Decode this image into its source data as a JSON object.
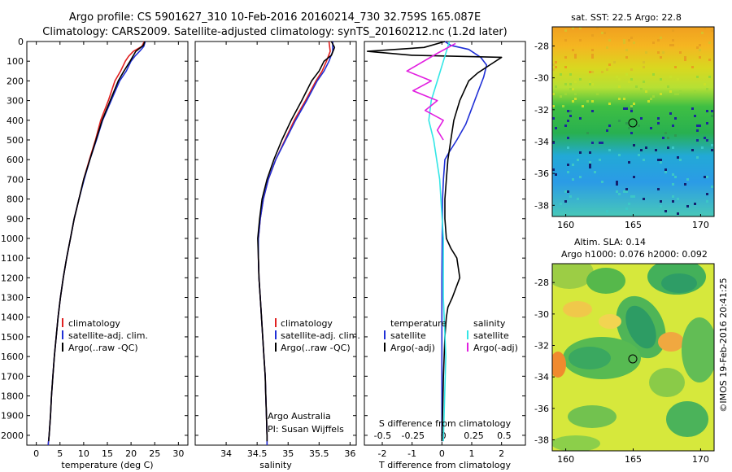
{
  "header": {
    "title_line1": "Argo profile: CS 5901627_310 10-Feb-2016 20160214_730 32.759S 165.087E",
    "title_line2": "Climatology: CARS2009. Satellite-adjusted climatology: synTS_20160212.nc (1.2d later)"
  },
  "colors": {
    "climatology": "#e02020",
    "satellite": "#1f2fd6",
    "argo": "#000000",
    "satellite_salinity": "#33e6e6",
    "argo_salinity": "#e21fe0"
  },
  "chart_data": [
    {
      "id": "temperature",
      "type": "line",
      "xlabel": "temperature (deg C)",
      "ylabel": "",
      "xlim": [
        -2,
        32
      ],
      "ylim": [
        2050,
        0
      ],
      "x_ticks": [
        0,
        5,
        10,
        15,
        20,
        25,
        30
      ],
      "y_ticks": [
        0,
        100,
        200,
        300,
        400,
        500,
        600,
        700,
        800,
        900,
        1000,
        1100,
        1200,
        1300,
        1400,
        1500,
        1600,
        1700,
        1800,
        1900,
        2000
      ],
      "legend": [
        "climatology",
        "satellite-adj. clim.",
        "Argo(..raw -QC)"
      ],
      "series": [
        {
          "name": "climatology",
          "color": "#e02020",
          "points": [
            [
              22.8,
              0
            ],
            [
              22.3,
              25
            ],
            [
              20.5,
              50
            ],
            [
              19.5,
              75
            ],
            [
              18.8,
              100
            ],
            [
              17.8,
              150
            ],
            [
              16.6,
              200
            ],
            [
              15.2,
              300
            ],
            [
              13.6,
              400
            ],
            [
              12.5,
              500
            ],
            [
              11.2,
              600
            ],
            [
              10.0,
              700
            ],
            [
              9.0,
              800
            ],
            [
              8.0,
              900
            ],
            [
              7.2,
              1000
            ],
            [
              6.4,
              1100
            ],
            [
              5.7,
              1200
            ],
            [
              5.1,
              1300
            ],
            [
              4.6,
              1400
            ],
            [
              4.2,
              1500
            ],
            [
              3.8,
              1600
            ],
            [
              3.5,
              1700
            ],
            [
              3.2,
              1800
            ],
            [
              3.0,
              1900
            ],
            [
              2.7,
              2000
            ],
            [
              2.5,
              2050
            ]
          ]
        },
        {
          "name": "satellite-adj. clim.",
          "color": "#1f2fd6",
          "points": [
            [
              23.0,
              0
            ],
            [
              22.7,
              25
            ],
            [
              21.8,
              50
            ],
            [
              20.8,
              75
            ],
            [
              20.0,
              100
            ],
            [
              19.0,
              150
            ],
            [
              17.6,
              200
            ],
            [
              15.8,
              300
            ],
            [
              14.0,
              400
            ],
            [
              12.7,
              500
            ],
            [
              11.3,
              600
            ],
            [
              10.1,
              700
            ],
            [
              9.0,
              800
            ],
            [
              8.0,
              900
            ],
            [
              7.2,
              1000
            ],
            [
              6.4,
              1100
            ],
            [
              5.7,
              1200
            ],
            [
              5.1,
              1300
            ],
            [
              4.6,
              1400
            ],
            [
              4.2,
              1500
            ],
            [
              3.8,
              1600
            ],
            [
              3.5,
              1700
            ],
            [
              3.2,
              1800
            ],
            [
              3.0,
              1900
            ],
            [
              2.7,
              2000
            ],
            [
              2.5,
              2050
            ]
          ]
        },
        {
          "name": "Argo(..raw -QC)",
          "color": "#000000",
          "points": [
            [
              22.9,
              0
            ],
            [
              22.6,
              20
            ],
            [
              21.0,
              50
            ],
            [
              19.8,
              100
            ],
            [
              18.5,
              150
            ],
            [
              17.3,
              200
            ],
            [
              15.6,
              300
            ],
            [
              13.9,
              400
            ],
            [
              12.6,
              500
            ],
            [
              11.3,
              600
            ],
            [
              10.0,
              700
            ],
            [
              9.0,
              800
            ],
            [
              8.0,
              900
            ],
            [
              7.2,
              1000
            ],
            [
              6.4,
              1100
            ],
            [
              5.7,
              1200
            ],
            [
              5.1,
              1300
            ],
            [
              4.6,
              1400
            ],
            [
              4.2,
              1500
            ],
            [
              3.8,
              1600
            ],
            [
              3.5,
              1700
            ],
            [
              3.2,
              1800
            ],
            [
              3.0,
              1900
            ],
            [
              2.7,
              2000
            ],
            [
              2.6,
              2030
            ]
          ]
        }
      ]
    },
    {
      "id": "salinity",
      "type": "line",
      "xlabel": "salinity",
      "xlim": [
        33.5,
        36.1
      ],
      "ylim": [
        2050,
        0
      ],
      "x_ticks": [
        34,
        34.5,
        35,
        35.5,
        36
      ],
      "legend": [
        "climatology",
        "satellite-adj. clim.",
        "Argo(..raw -QC)"
      ],
      "annotation": [
        "Argo Australia",
        "PI: Susan Wijffels"
      ],
      "series": [
        {
          "name": "climatology",
          "color": "#e02020",
          "points": [
            [
              35.66,
              0
            ],
            [
              35.68,
              50
            ],
            [
              35.62,
              100
            ],
            [
              35.55,
              150
            ],
            [
              35.45,
              200
            ],
            [
              35.28,
              300
            ],
            [
              35.1,
              400
            ],
            [
              34.95,
              500
            ],
            [
              34.8,
              600
            ],
            [
              34.68,
              700
            ],
            [
              34.6,
              800
            ],
            [
              34.55,
              900
            ],
            [
              34.52,
              1000
            ],
            [
              34.52,
              1100
            ],
            [
              34.53,
              1200
            ],
            [
              34.55,
              1300
            ],
            [
              34.57,
              1400
            ],
            [
              34.59,
              1500
            ],
            [
              34.61,
              1600
            ],
            [
              34.63,
              1700
            ],
            [
              34.64,
              1800
            ],
            [
              34.65,
              1900
            ],
            [
              34.66,
              2000
            ],
            [
              34.66,
              2050
            ]
          ]
        },
        {
          "name": "satellite-adj. clim.",
          "color": "#1f2fd6",
          "points": [
            [
              35.72,
              0
            ],
            [
              35.72,
              50
            ],
            [
              35.66,
              100
            ],
            [
              35.58,
              150
            ],
            [
              35.47,
              200
            ],
            [
              35.3,
              300
            ],
            [
              35.12,
              400
            ],
            [
              34.96,
              500
            ],
            [
              34.8,
              600
            ],
            [
              34.68,
              700
            ],
            [
              34.6,
              800
            ],
            [
              34.55,
              900
            ],
            [
              34.52,
              1000
            ],
            [
              34.52,
              1100
            ],
            [
              34.53,
              1200
            ],
            [
              34.55,
              1300
            ],
            [
              34.57,
              1400
            ],
            [
              34.59,
              1500
            ],
            [
              34.61,
              1600
            ],
            [
              34.63,
              1700
            ],
            [
              34.64,
              1800
            ],
            [
              34.65,
              1900
            ],
            [
              34.66,
              2000
            ],
            [
              34.66,
              2050
            ]
          ]
        },
        {
          "name": "Argo(..raw -QC)",
          "color": "#000000",
          "points": [
            [
              35.7,
              0
            ],
            [
              35.75,
              30
            ],
            [
              35.7,
              70
            ],
            [
              35.58,
              100
            ],
            [
              35.5,
              150
            ],
            [
              35.38,
              200
            ],
            [
              35.22,
              300
            ],
            [
              35.05,
              400
            ],
            [
              34.9,
              500
            ],
            [
              34.77,
              600
            ],
            [
              34.66,
              700
            ],
            [
              34.58,
              800
            ],
            [
              34.54,
              900
            ],
            [
              34.51,
              1000
            ],
            [
              34.52,
              1100
            ],
            [
              34.53,
              1200
            ],
            [
              34.55,
              1300
            ],
            [
              34.57,
              1400
            ],
            [
              34.59,
              1500
            ],
            [
              34.61,
              1600
            ],
            [
              34.63,
              1700
            ],
            [
              34.64,
              1800
            ],
            [
              34.65,
              1900
            ],
            [
              34.66,
              2000
            ],
            [
              34.66,
              2030
            ]
          ]
        }
      ]
    },
    {
      "id": "difference",
      "type": "line",
      "xlabel": "T difference from climatology",
      "x2label": "S difference from climatology",
      "xlim": [
        -2.6,
        2.8
      ],
      "ylim": [
        2050,
        0
      ],
      "x_ticks": [
        -2,
        -1,
        0,
        1,
        2
      ],
      "x2_ticks": [
        "-0.5",
        "-0.25",
        "0",
        "0.25",
        "0.5"
      ],
      "legend": [
        "temperature",
        "satellite",
        "Argo(-adj)",
        "salinity",
        "satellite",
        "Argo(-adj)"
      ],
      "series": [
        {
          "name": "T satellite",
          "color": "#1f2fd6",
          "points": [
            [
              0.1,
              0
            ],
            [
              0.3,
              20
            ],
            [
              0.9,
              40
            ],
            [
              1.3,
              80
            ],
            [
              1.5,
              120
            ],
            [
              1.4,
              180
            ],
            [
              1.2,
              260
            ],
            [
              1.0,
              340
            ],
            [
              0.8,
              420
            ],
            [
              0.5,
              500
            ],
            [
              0.25,
              560
            ],
            [
              0.1,
              600
            ],
            [
              0.05,
              700
            ],
            [
              0.02,
              800
            ],
            [
              0.01,
              1000
            ],
            [
              0.0,
              1200
            ],
            [
              0.0,
              1600
            ],
            [
              0.0,
              2030
            ]
          ]
        },
        {
          "name": "T Argo(-adj)",
          "color": "#000000",
          "points": [
            [
              0.1,
              0
            ],
            [
              -0.6,
              30
            ],
            [
              -2.5,
              50
            ],
            [
              -1.0,
              70
            ],
            [
              2.0,
              80
            ],
            [
              1.6,
              120
            ],
            [
              1.2,
              160
            ],
            [
              0.9,
              200
            ],
            [
              0.6,
              300
            ],
            [
              0.4,
              400
            ],
            [
              0.3,
              500
            ],
            [
              0.2,
              600
            ],
            [
              0.15,
              700
            ],
            [
              0.1,
              800
            ],
            [
              0.1,
              900
            ],
            [
              0.15,
              1000
            ],
            [
              0.3,
              1050
            ],
            [
              0.5,
              1100
            ],
            [
              0.6,
              1200
            ],
            [
              0.35,
              1300
            ],
            [
              0.2,
              1350
            ],
            [
              0.15,
              1400
            ],
            [
              0.1,
              1500
            ],
            [
              0.05,
              1700
            ],
            [
              0.02,
              1900
            ],
            [
              0.0,
              2030
            ]
          ]
        },
        {
          "name": "S satellite",
          "color": "#33e6e6",
          "points": [
            [
              0.05,
              0
            ],
            [
              0.0,
              100
            ],
            [
              -0.05,
              200
            ],
            [
              -0.1,
              300
            ],
            [
              -0.12,
              400
            ],
            [
              -0.08,
              500
            ],
            [
              -0.03,
              700
            ],
            [
              0.0,
              1000
            ],
            [
              0.0,
              1300
            ],
            [
              0.02,
              1600
            ],
            [
              0.0,
              2030
            ]
          ]
        },
        {
          "name": "S Argo(-adj)",
          "color": "#e21fe0",
          "points": [
            [
              0.1,
              10
            ],
            [
              -0.05,
              60
            ],
            [
              -0.3,
              150
            ],
            [
              -0.1,
              200
            ],
            [
              -0.25,
              250
            ],
            [
              -0.05,
              300
            ],
            [
              -0.15,
              350
            ],
            [
              0.0,
              400
            ],
            [
              -0.05,
              450
            ],
            [
              0.0,
              500
            ]
          ]
        }
      ]
    },
    {
      "id": "sst-map",
      "type": "heatmap",
      "title": "sat. SST: 22.5  Argo: 22.8",
      "xlim": [
        159,
        171
      ],
      "ylim": [
        -38.7,
        -26.8
      ],
      "x_ticks": [
        160,
        165,
        170
      ],
      "y_ticks": [
        -28,
        -30,
        -32,
        -34,
        -36,
        -38
      ],
      "marker": {
        "lon": 165.087,
        "lat": -32.759
      }
    },
    {
      "id": "sla-map",
      "type": "heatmap",
      "title": "Altim. SLA: 0.14",
      "subtitle": "Argo h1000: 0.076 h2000: 0.092",
      "xlim": [
        159,
        171
      ],
      "ylim": [
        -38.7,
        -26.8
      ],
      "x_ticks": [
        160,
        165,
        170
      ],
      "y_ticks": [
        -28,
        -30,
        -32,
        -34,
        -36,
        -38
      ],
      "marker": {
        "lon": 165.087,
        "lat": -32.759
      }
    }
  ],
  "labels": {
    "t_leg_clim": "climatology",
    "t_leg_sat": "satellite-adj. clim.",
    "t_leg_argo": "Argo(..raw -QC)",
    "s_leg_clim": "climatology",
    "s_leg_sat": "satellite-adj. clim.",
    "s_leg_argo": "Argo(..raw -QC)",
    "d_leg_temp": "temperature",
    "d_leg_t_sat": "satellite",
    "d_leg_t_argo": "Argo(-adj)",
    "d_leg_sal": "salinity",
    "d_leg_s_sat": "satellite",
    "d_leg_s_argo": "Argo(-adj)",
    "annotation_1": "Argo Australia",
    "annotation_2": "PI: Susan Wijffels",
    "credit": "©IMOS 19-Feb-2016 20:41:25"
  }
}
